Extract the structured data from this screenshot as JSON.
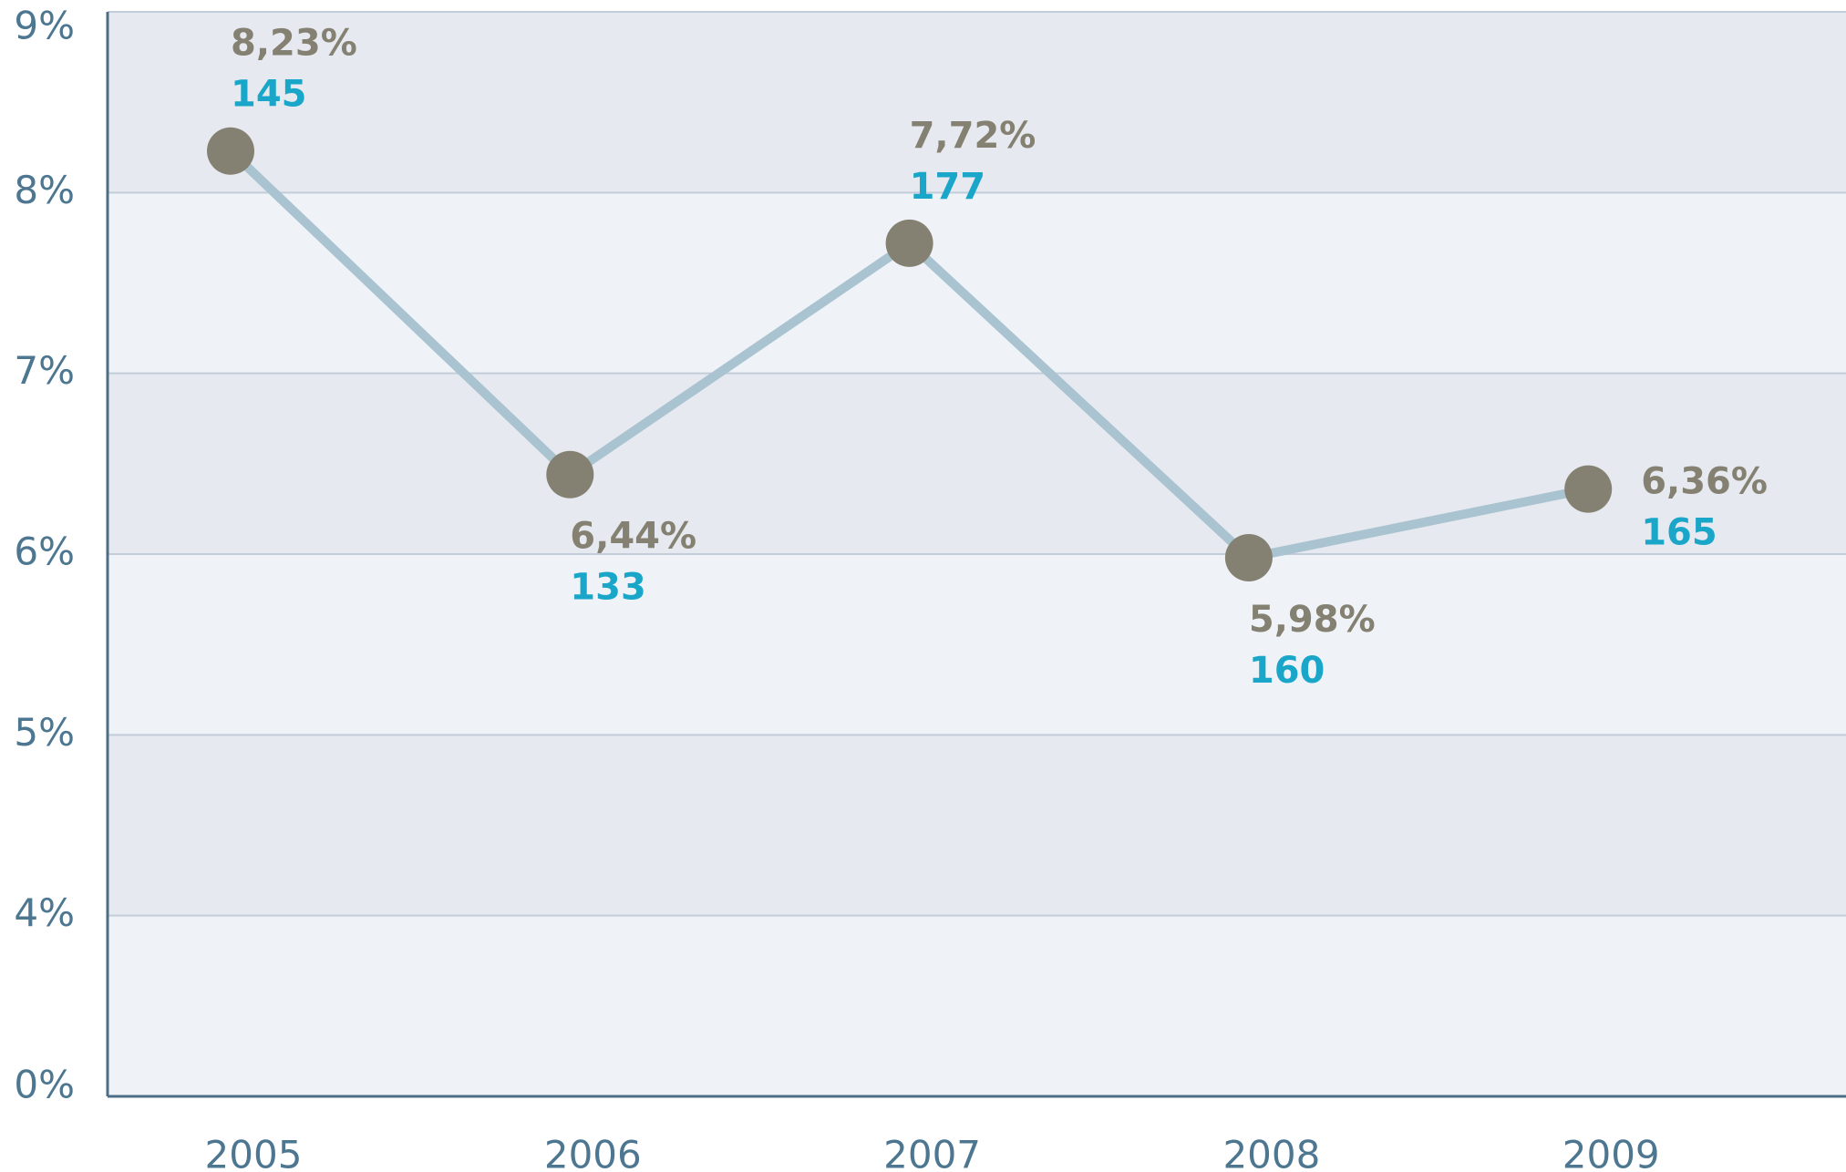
{
  "chart_data": {
    "type": "line",
    "categories": [
      "2005",
      "2006",
      "2007",
      "2008",
      "2009"
    ],
    "series": [
      {
        "color": "#a9c3d0",
        "marker_color": "#858172",
        "values": [
          8.23,
          6.44,
          7.72,
          5.98,
          6.36
        ],
        "value_labels": [
          "8,23%",
          "6,44%",
          "7,72%",
          "5,98%",
          "6,36%"
        ],
        "counts": [
          145,
          133,
          177,
          160,
          165
        ]
      }
    ],
    "ylim": [
      0,
      9
    ],
    "yticks": [
      {
        "value": 0,
        "label": "0%"
      },
      {
        "value": 4,
        "label": "4%"
      },
      {
        "value": 5,
        "label": "5%"
      },
      {
        "value": 6,
        "label": "6%"
      },
      {
        "value": 7,
        "label": "7%"
      },
      {
        "value": 8,
        "label": "8%"
      },
      {
        "value": 9,
        "label": "9%"
      }
    ],
    "grid": true
  }
}
